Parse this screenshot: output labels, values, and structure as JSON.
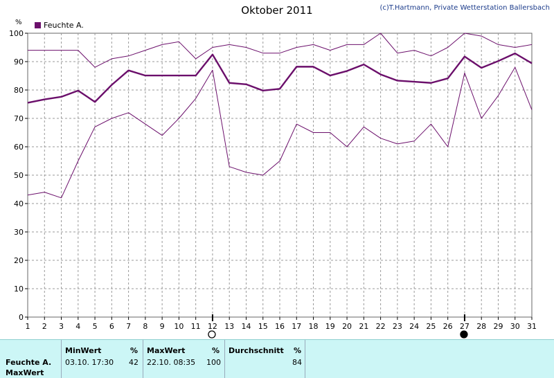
{
  "header": {
    "title": "Oktober 2011",
    "copyright": "(c)T.Hartmann, Private Wetterstation Ballersbach",
    "legend_label": "Feuchte A.",
    "unit": "%"
  },
  "colors": {
    "series": "#6b0f6b",
    "grid": "#999999",
    "panel_bg": "#ccf6f6"
  },
  "chart_data": {
    "type": "line",
    "x": [
      1,
      2,
      3,
      4,
      5,
      6,
      7,
      8,
      9,
      10,
      11,
      12,
      13,
      14,
      15,
      16,
      17,
      18,
      19,
      20,
      21,
      22,
      23,
      24,
      25,
      26,
      27,
      28,
      29,
      30,
      31
    ],
    "ylim": [
      0,
      100
    ],
    "yticks": [
      0,
      10,
      20,
      30,
      40,
      50,
      60,
      70,
      80,
      90,
      100
    ],
    "grid": true,
    "legend_position": "top-left",
    "series": [
      {
        "name": "Feuchte A.",
        "role": "average",
        "values": [
          75.5,
          76.7,
          77.6,
          79.8,
          75.8,
          81.8,
          86.9,
          85.1,
          85.1,
          85.1,
          85.1,
          92.5,
          82.5,
          82.0,
          79.8,
          80.4,
          88.2,
          88.2,
          85.1,
          86.7,
          89.0,
          85.5,
          83.3,
          82.9,
          82.5,
          84.1,
          91.8,
          87.8,
          90.2,
          92.9,
          89.4
        ]
      },
      {
        "role": "max",
        "values": [
          94,
          94,
          94,
          94,
          88,
          91,
          92,
          94,
          96,
          97,
          91,
          95,
          96,
          95,
          93,
          93,
          95,
          96,
          94,
          96,
          96,
          100,
          93,
          94,
          92,
          95,
          100,
          99,
          96,
          95,
          96
        ]
      },
      {
        "role": "min",
        "values": [
          43,
          44,
          42,
          55,
          67,
          70,
          72,
          68,
          64,
          70,
          77,
          87,
          53,
          51,
          50,
          55,
          68,
          65,
          65,
          60,
          67,
          63,
          61,
          62,
          68,
          60,
          86,
          70,
          78,
          88,
          73
        ]
      }
    ],
    "moon_markers": [
      {
        "day": 12,
        "phase": "full"
      },
      {
        "day": 27,
        "phase": "new"
      }
    ]
  },
  "stats": {
    "row_label_1": "Feuchte A.",
    "row_label_2": "MaxWert",
    "min": {
      "header": "MinWert",
      "unit": "%",
      "datetime": "03.10.  17:30",
      "value": "42"
    },
    "max": {
      "header": "MaxWert",
      "unit": "%",
      "datetime": "22.10.  08:35",
      "value": "100"
    },
    "avg": {
      "header": "Durchschnitt",
      "unit": "%",
      "value": "84"
    }
  }
}
